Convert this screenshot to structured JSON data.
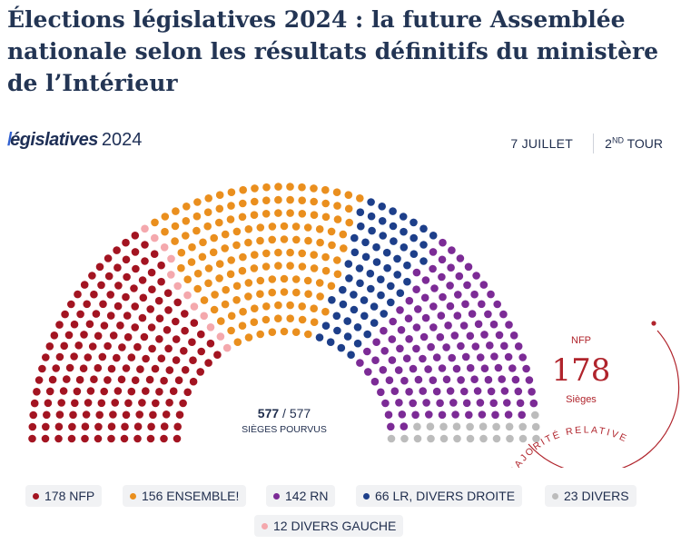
{
  "title": "Élections législatives 2024 : la future Assemblée nationale selon les résultats définitifs du ministère de l’Intérieur",
  "brand": {
    "logo_mark": "/",
    "logo_text": "égislatives",
    "year": "2024"
  },
  "meta": {
    "date": "7 JUILLET",
    "round_prefix": "2",
    "round_sup": "ND",
    "round_suffix": " TOUR"
  },
  "center_label": {
    "filled": "577",
    "sep": " / ",
    "total": "577",
    "caption": "SIÈGES POURVUS"
  },
  "majority": {
    "arc_label": "MAJORITÉ RELATIVE",
    "party": "NFP",
    "seats": "178",
    "caption": "Sièges",
    "color": "#b0242c"
  },
  "chart_data": {
    "type": "hemicycle",
    "total_seats": 577,
    "series": [
      {
        "name": "NFP",
        "value": 178,
        "color": "#a31421"
      },
      {
        "name": "DIVERS GAUCHE",
        "value": 12,
        "color": "#f4a8ad"
      },
      {
        "name": "ENSEMBLE!",
        "value": 156,
        "color": "#ea8f1e"
      },
      {
        "name": "LR, DIVERS DROITE",
        "value": 66,
        "color": "#1d3f8a"
      },
      {
        "name": "RN",
        "value": 142,
        "color": "#7c2b96"
      },
      {
        "name": "DIVERS",
        "value": 23,
        "color": "#bcbcbc"
      }
    ],
    "legend": [
      {
        "count": "178",
        "label": "NFP",
        "color": "#a31421"
      },
      {
        "count": "156",
        "label": "ENSEMBLE!",
        "color": "#ea8f1e"
      },
      {
        "count": "142",
        "label": "RN",
        "color": "#7c2b96"
      },
      {
        "count": "66",
        "label": "LR, DIVERS DROITE",
        "color": "#1d3f8a"
      },
      {
        "count": "23",
        "label": "DIVERS",
        "color": "#bcbcbc"
      },
      {
        "count": "12",
        "label": "DIVERS GAUCHE",
        "color": "#f4a8ad"
      }
    ]
  }
}
